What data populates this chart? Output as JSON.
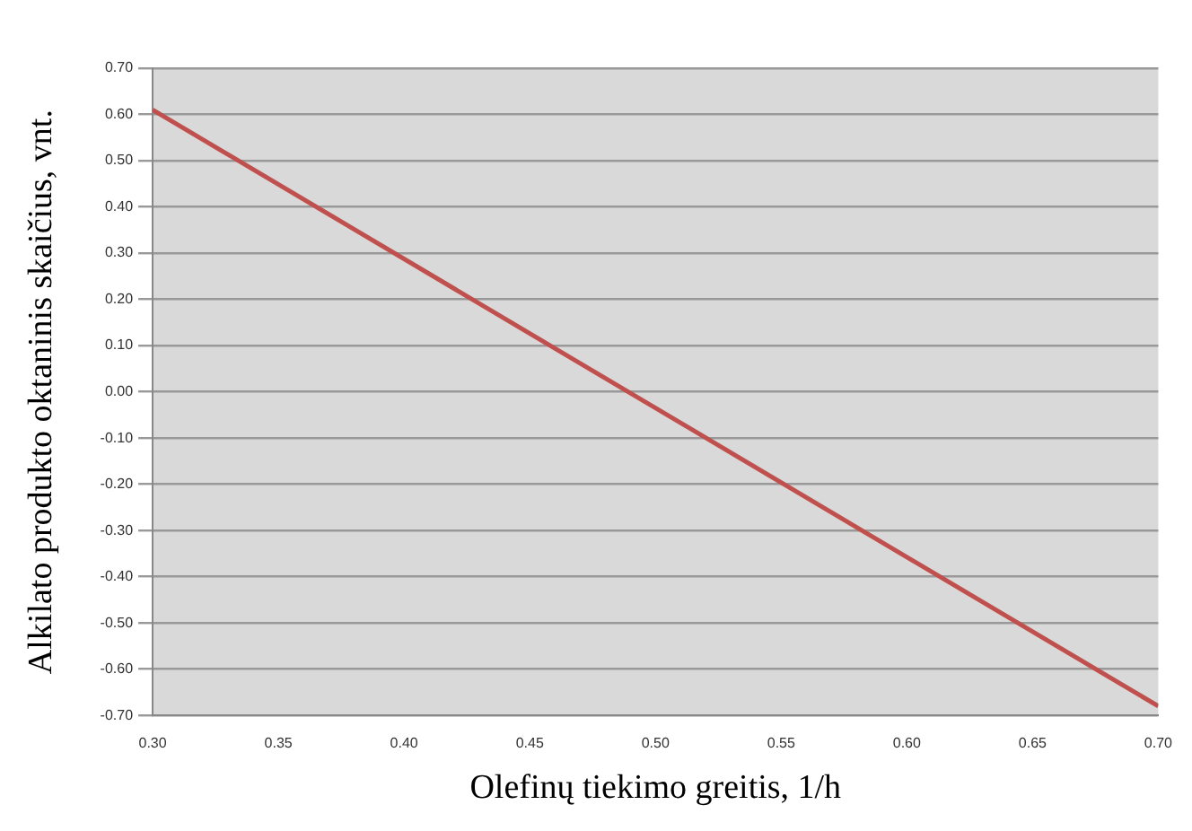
{
  "chart_data": {
    "type": "line",
    "xlabel": "Olefinų tiekimo greitis, 1/h",
    "ylabel": "Alkilato produkto oktaninis skaičius, vnt.",
    "x": [
      0.3,
      0.7
    ],
    "series": [
      {
        "color": "#c0504d",
        "values": [
          0.61,
          -0.68
        ]
      }
    ],
    "xlim": [
      0.3,
      0.7
    ],
    "xticks": [
      {
        "value": 0.3,
        "label": "0.30"
      },
      {
        "value": 0.35,
        "label": "0.35"
      },
      {
        "value": 0.4,
        "label": "0.40"
      },
      {
        "value": 0.45,
        "label": "0.45"
      },
      {
        "value": 0.5,
        "label": "0.50"
      },
      {
        "value": 0.55,
        "label": "0.55"
      },
      {
        "value": 0.6,
        "label": "0.60"
      },
      {
        "value": 0.65,
        "label": "0.65"
      },
      {
        "value": 0.7,
        "label": "0.70"
      }
    ],
    "ylim": [
      -0.7,
      0.7
    ],
    "yticks": [
      {
        "value": 0.7,
        "label": "0.70"
      },
      {
        "value": 0.6,
        "label": "0.60"
      },
      {
        "value": 0.5,
        "label": "0.50"
      },
      {
        "value": 0.4,
        "label": "0.40"
      },
      {
        "value": 0.3,
        "label": "0.30"
      },
      {
        "value": 0.2,
        "label": "0.20"
      },
      {
        "value": 0.1,
        "label": "0.10"
      },
      {
        "value": 0,
        "label": "0.00"
      },
      {
        "value": -0.1,
        "label": "-0.10"
      },
      {
        "value": -0.2,
        "label": "-0.20"
      },
      {
        "value": -0.3,
        "label": "-0.30"
      },
      {
        "value": -0.4,
        "label": "-0.40"
      },
      {
        "value": -0.5,
        "label": "-0.50"
      },
      {
        "value": -0.6,
        "label": "-0.60"
      },
      {
        "value": -0.7,
        "label": "-0.70"
      }
    ],
    "grid": "y",
    "legend": false,
    "marker": "none",
    "line_style": "solid"
  }
}
